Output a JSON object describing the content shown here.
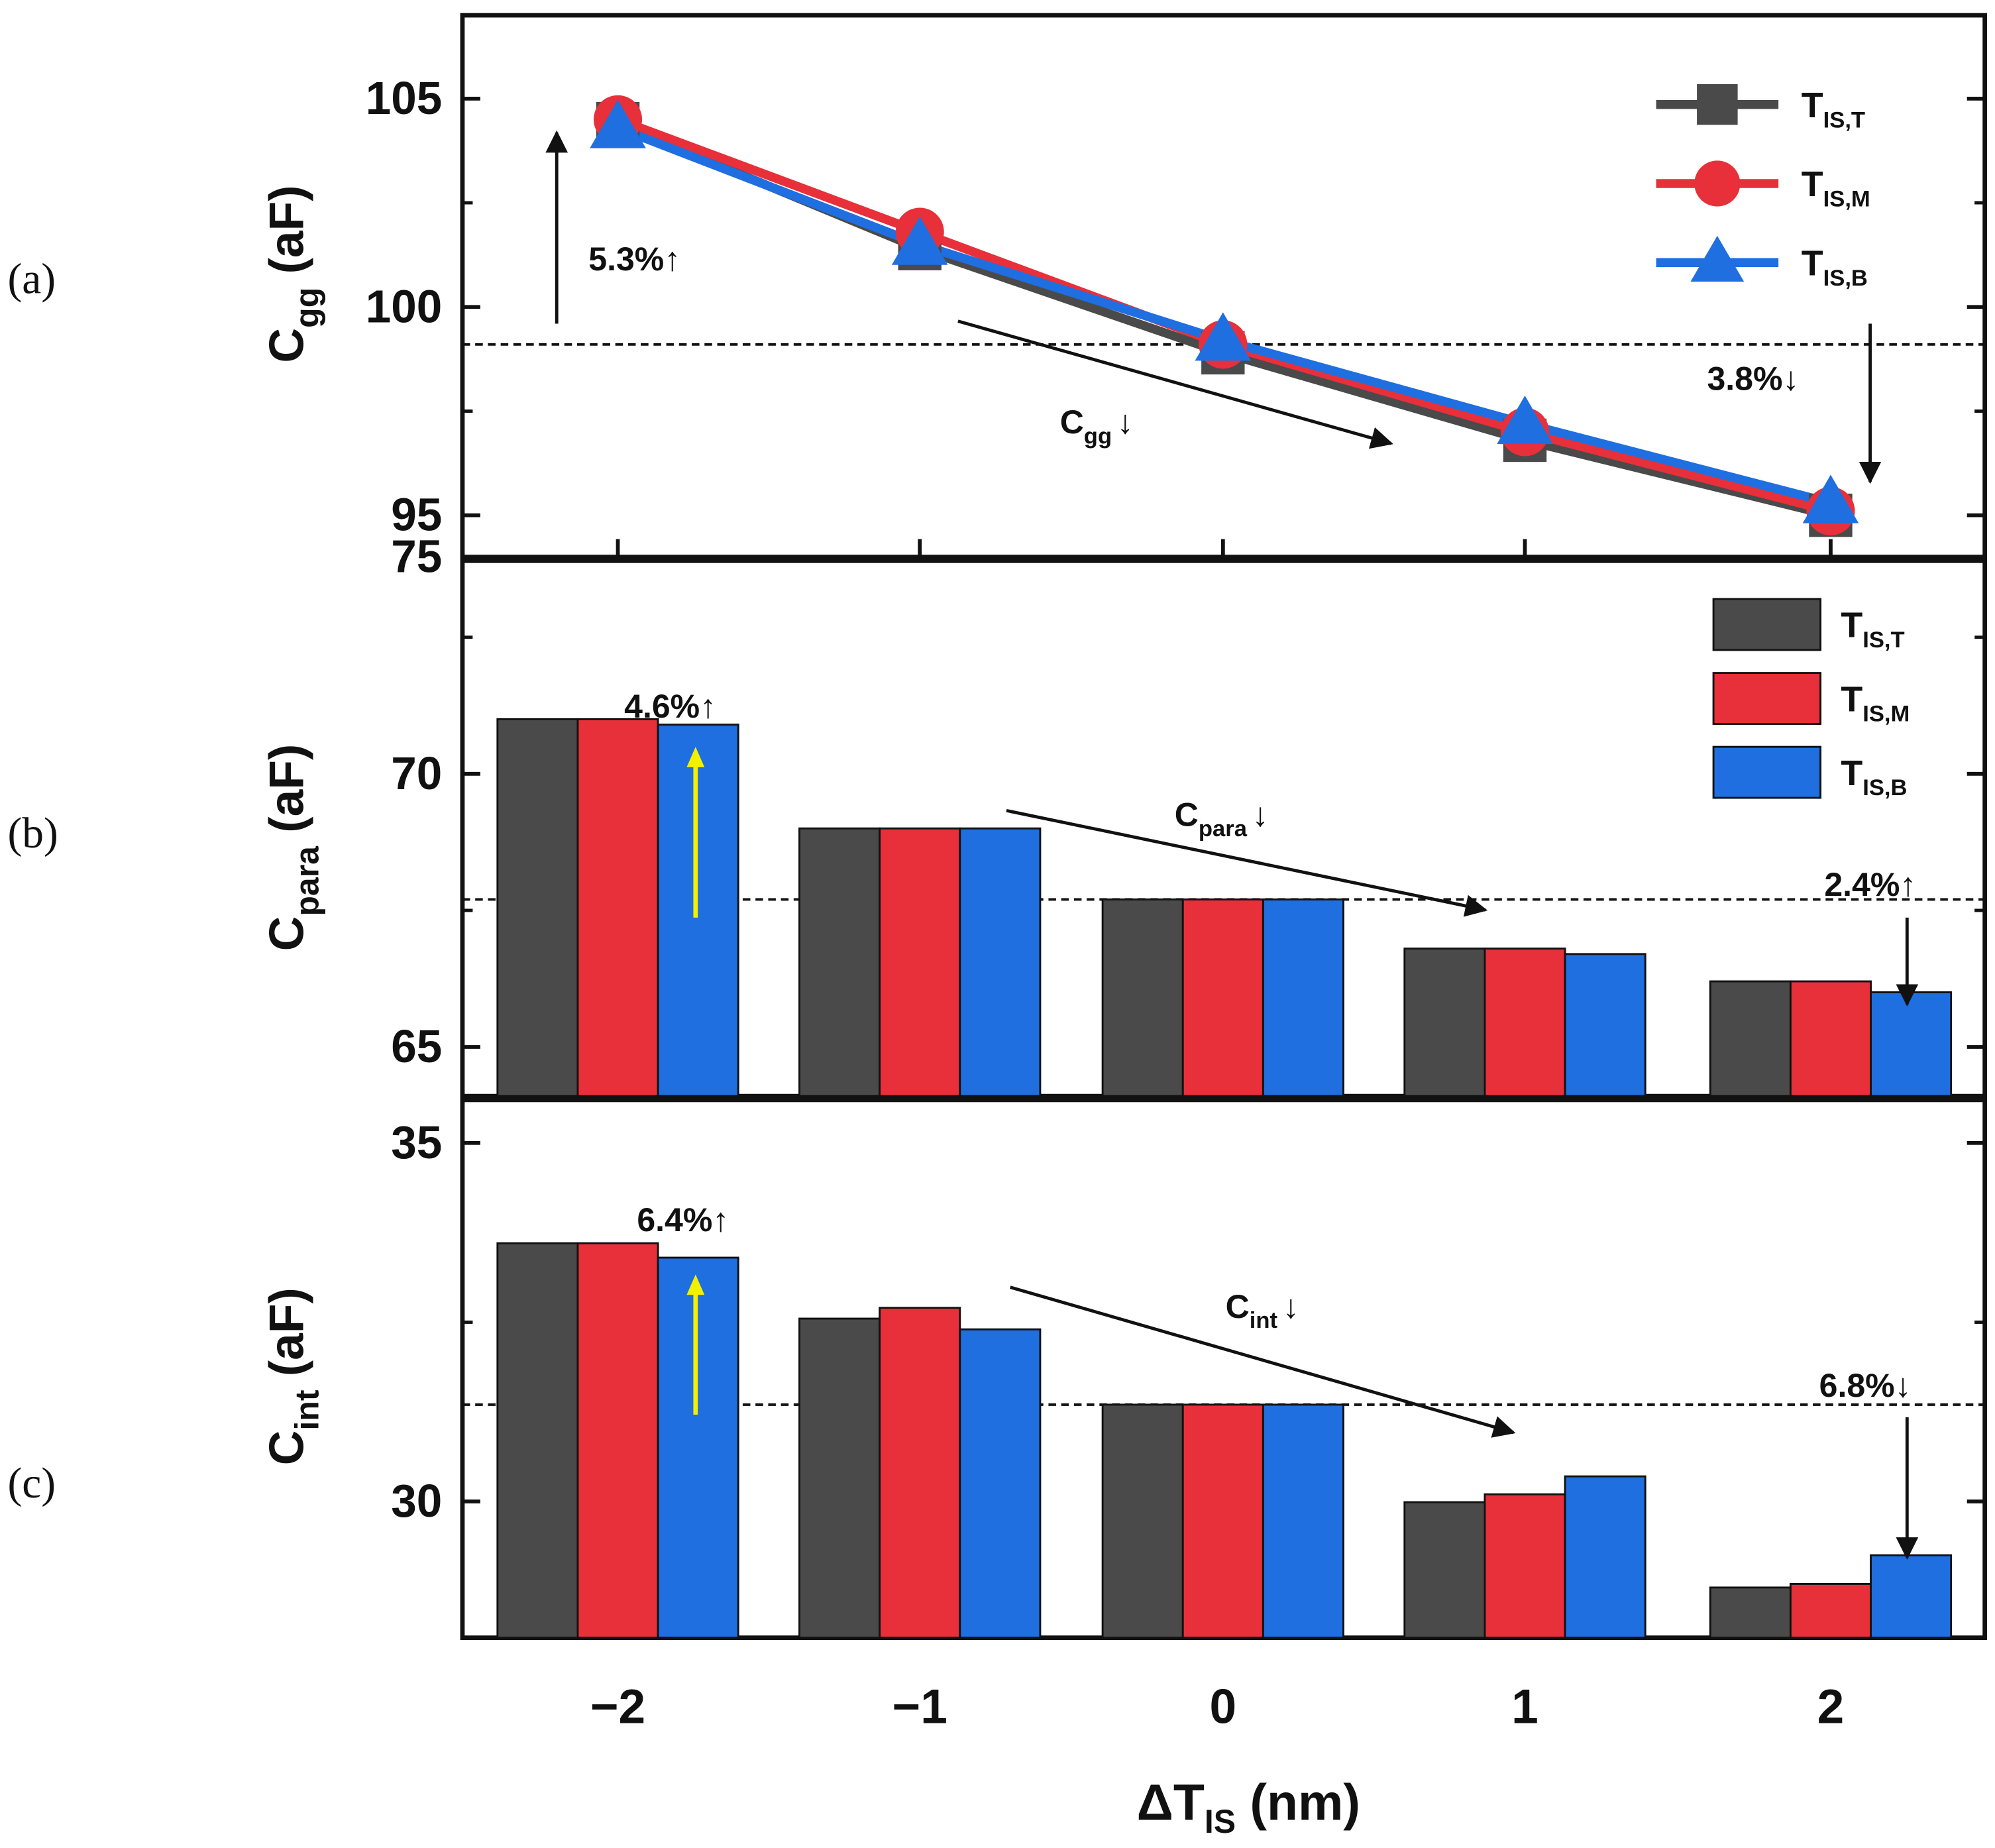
{
  "figure": {
    "x_axis": {
      "label_main": "ΔT",
      "label_sub": "IS",
      "label_tail": " (nm)",
      "ticks": [
        "−2",
        "−1",
        "0",
        "1",
        "2"
      ]
    }
  },
  "chart_data": [
    {
      "type": "line",
      "panel_label": "(a)",
      "ylabel": {
        "main": "C",
        "sub": "gg",
        "tail": " (aF)"
      },
      "x": [
        -2,
        -1,
        0,
        1,
        2
      ],
      "ylim": [
        94,
        107
      ],
      "y_ticks": [
        "105",
        "100",
        "95"
      ],
      "y_tick_values": [
        105,
        100,
        95
      ],
      "y_axis_break_label": "75",
      "series": [
        {
          "name": "T",
          "sub": "IS,T",
          "color": "#4a4a4a",
          "marker": "square",
          "values": [
            104.4,
            101.4,
            98.9,
            96.8,
            95.0
          ]
        },
        {
          "name": "T",
          "sub": "IS,M",
          "color": "#e8303a",
          "marker": "circle",
          "values": [
            104.5,
            101.8,
            99.1,
            97.0,
            95.1
          ]
        },
        {
          "name": "T",
          "sub": "IS,B",
          "color": "#1f6fe0",
          "marker": "triangle",
          "values": [
            104.3,
            101.5,
            99.2,
            97.2,
            95.3
          ]
        }
      ],
      "reference_line": 99.1,
      "annotations": [
        {
          "text": "5.3%↑"
        },
        {
          "text": "3.8%↓"
        },
        {
          "main": "C",
          "sub": "gg",
          "tail": "↓"
        }
      ]
    },
    {
      "type": "bar",
      "panel_label": "(b)",
      "ylabel": {
        "main": "C",
        "sub": "para",
        "tail": " (aF)"
      },
      "categories": [
        "−2",
        "−1",
        "0",
        "1",
        "2"
      ],
      "ylim": [
        64.1,
        73.9
      ],
      "y_ticks": [
        "70",
        "65"
      ],
      "y_tick_values": [
        70,
        65
      ],
      "series": [
        {
          "name": "T",
          "sub": "IS,T",
          "color": "#4a4a4a",
          "values": [
            71.0,
            69.0,
            67.7,
            66.8,
            66.2
          ]
        },
        {
          "name": "T",
          "sub": "IS,M",
          "color": "#e8303a",
          "values": [
            71.0,
            69.0,
            67.7,
            66.8,
            66.2
          ]
        },
        {
          "name": "T",
          "sub": "IS,B",
          "color": "#1f6fe0",
          "values": [
            70.9,
            69.0,
            67.7,
            66.7,
            66.0
          ]
        }
      ],
      "reference_line": 67.7,
      "annotations": [
        {
          "text": "4.6%↑"
        },
        {
          "text": "2.4%↑"
        },
        {
          "main": "C",
          "sub": "para",
          "tail": "↓"
        }
      ]
    },
    {
      "type": "bar",
      "panel_label": "(c)",
      "ylabel": {
        "main": "C",
        "sub": "int",
        "tail": " (aF)"
      },
      "categories": [
        "−2",
        "−1",
        "0",
        "1",
        "2"
      ],
      "ylim": [
        28.1,
        35.6
      ],
      "y_ticks": [
        "35",
        "30"
      ],
      "y_tick_values": [
        35,
        30
      ],
      "series": [
        {
          "name": "T",
          "sub": "IS,T",
          "color": "#4a4a4a",
          "values": [
            33.6,
            32.55,
            31.35,
            29.99,
            28.8
          ]
        },
        {
          "name": "T",
          "sub": "IS,M",
          "color": "#e8303a",
          "values": [
            33.6,
            32.7,
            31.35,
            30.1,
            28.85
          ]
        },
        {
          "name": "T",
          "sub": "IS,B",
          "color": "#1f6fe0",
          "values": [
            33.4,
            32.4,
            31.35,
            30.35,
            29.25
          ]
        }
      ],
      "reference_line": 31.35,
      "annotations": [
        {
          "text": "6.4%↑"
        },
        {
          "text": "6.8%↓"
        },
        {
          "main": "C",
          "sub": "int",
          "tail": "↓"
        }
      ]
    }
  ]
}
